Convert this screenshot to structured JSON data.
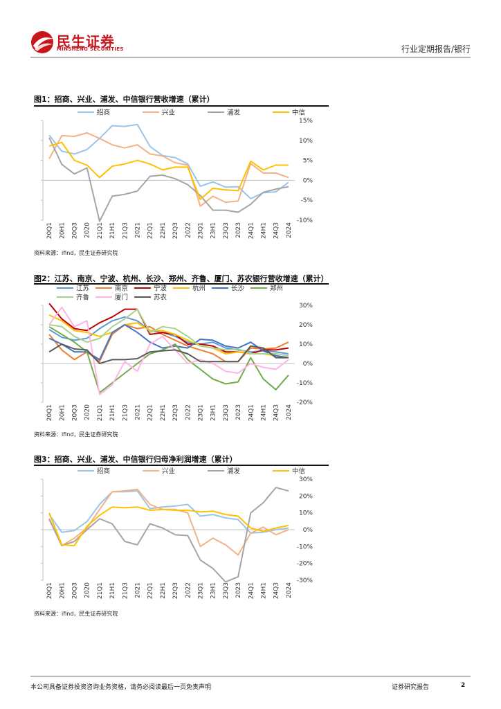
{
  "header": {
    "brand_cn": "民生证券",
    "brand_en": "MINSHENG SECURITIES",
    "report_type": "行业定期报告/银行"
  },
  "figures": [
    {
      "title": "图1：招商、兴业、浦发、中信银行营收增速（累计）",
      "source": "资料来源：ifind，民生证券研究院"
    },
    {
      "title": "图2：江苏、南京、宁波、杭州、长沙、郑州、齐鲁、厦门、苏农银行营收增速（累计）",
      "source": "资料来源：ifind，民生证券研究院"
    },
    {
      "title": "图3：招商、兴业、浦发、中信银行归母净利润增速（累计）",
      "source": "资料来源：ifind，民生证券研究院"
    }
  ],
  "footer": {
    "disclaimer": "本公司具备证券投资咨询业务资格，请务必阅读最后一页免责声明",
    "label": "证券研究报告",
    "page": "2"
  },
  "chart_data": [
    {
      "type": "line",
      "title": "图1：招商、兴业、浦发、中信银行营收增速（累计）",
      "categories": [
        "20Q1",
        "20H1",
        "20Q3",
        "2020",
        "21Q1",
        "21H1",
        "21Q3",
        "2021",
        "22Q1",
        "22H1",
        "22Q3",
        "2022",
        "23Q1",
        "23H1",
        "23Q3",
        "2023",
        "24Q1",
        "24H1",
        "24Q3",
        "2024"
      ],
      "ylim": [
        -10,
        15
      ],
      "yticks": [
        15,
        10,
        5,
        0,
        -5,
        -10
      ],
      "ytick_labels": [
        "15%",
        "10%",
        "5%",
        "0%",
        "-5%",
        "-10%"
      ],
      "legend": "top",
      "series": [
        {
          "name": "招商",
          "color": "#9dc3e6",
          "values": [
            11.3,
            7.3,
            6.6,
            7.7,
            10.5,
            13.7,
            13.5,
            14.0,
            8.5,
            6.2,
            5.7,
            4.1,
            -1.5,
            -0.4,
            -1.7,
            -1.6,
            -4.6,
            -3.1,
            -2.9,
            -0.5
          ]
        },
        {
          "name": "兴业",
          "color": "#f4b183",
          "values": [
            5.4,
            11.2,
            11.0,
            11.9,
            10.5,
            8.9,
            8.1,
            8.9,
            6.6,
            6.1,
            4.4,
            3.8,
            -6.5,
            -4.0,
            -5.5,
            -5.2,
            4.2,
            1.8,
            1.8,
            0.7
          ]
        },
        {
          "name": "浦发",
          "color": "#a5a5a5",
          "values": [
            10.7,
            4.0,
            1.6,
            3.1,
            -10.3,
            -4.0,
            -3.5,
            -2.7,
            1.0,
            1.3,
            0.4,
            -1.1,
            -3.8,
            -7.5,
            -7.5,
            -8.0,
            -6.0,
            -3.0,
            -2.2,
            -1.6
          ]
        },
        {
          "name": "中信",
          "color": "#ffc000",
          "values": [
            8.6,
            9.5,
            5.0,
            3.8,
            0.7,
            3.5,
            4.1,
            5.0,
            4.1,
            2.6,
            3.3,
            3.3,
            -4.8,
            -2.0,
            -2.4,
            -2.6,
            4.8,
            2.6,
            3.8,
            3.8
          ]
        }
      ]
    },
    {
      "type": "line",
      "title": "图2：江苏、南京、宁波、杭州、长沙、郑州、齐鲁、厦门、苏农银行营收增速（累计）",
      "categories": [
        "20Q1",
        "20H1",
        "20Q3",
        "2020",
        "21Q1",
        "21H1",
        "21Q3",
        "2021",
        "22Q1",
        "22H1",
        "22Q3",
        "2022",
        "23Q1",
        "23H1",
        "23Q3",
        "2023",
        "24Q1",
        "24H1",
        "24Q3",
        "2024"
      ],
      "ylim": [
        -20,
        30
      ],
      "yticks": [
        30,
        20,
        10,
        0,
        -10,
        -20
      ],
      "ytick_labels": [
        "30%",
        "20%",
        "10%",
        "0%",
        "-10%",
        "-20%"
      ],
      "legend": "top",
      "series": [
        {
          "name": "江苏",
          "color": "#5b9bd5",
          "values": [
            17.5,
            13.5,
            12.0,
            13.0,
            18.0,
            22.0,
            24.0,
            22.0,
            17.0,
            16.0,
            14.0,
            11.0,
            10.0,
            11.0,
            8.0,
            7.0,
            6.0,
            6.5,
            6.0,
            5.0
          ]
        },
        {
          "name": "南京",
          "color": "#ed7d31",
          "values": [
            15.0,
            7.0,
            2.0,
            6.0,
            1.0,
            15.0,
            20.0,
            18.0,
            19.0,
            15.0,
            12.0,
            9.0,
            7.0,
            5.0,
            1.0,
            1.0,
            8.0,
            7.5,
            8.0,
            11.0
          ]
        },
        {
          "name": "宁波",
          "color": "#c00000",
          "values": [
            31.0,
            23.0,
            18.0,
            17.0,
            21.0,
            24.0,
            28.0,
            28.0,
            15.0,
            16.0,
            15.0,
            10.0,
            10.0,
            9.0,
            6.0,
            6.0,
            5.0,
            7.0,
            7.0,
            8.0
          ]
        },
        {
          "name": "杭州",
          "color": "#ffc000",
          "values": [
            25.0,
            22.0,
            17.0,
            16.0,
            14.0,
            16.0,
            20.0,
            21.0,
            17.0,
            17.0,
            15.0,
            12.0,
            9.0,
            8.0,
            5.0,
            6.0,
            5.0,
            5.0,
            4.0,
            3.0
          ]
        },
        {
          "name": "长沙",
          "color": "#4472c4",
          "values": [
            13.0,
            10.0,
            6.0,
            6.0,
            2.0,
            16.0,
            20.0,
            16.0,
            11.0,
            8.0,
            9.0,
            8.0,
            12.5,
            12.0,
            9.0,
            8.0,
            11.0,
            6.5,
            4.0,
            3.0
          ]
        },
        {
          "name": "郑州",
          "color": "#70ad47",
          "values": [
            19.0,
            15.0,
            11.0,
            6.0,
            -15.0,
            -10.0,
            -5.0,
            0.0,
            5.0,
            7.0,
            10.0,
            2.0,
            -3.0,
            -8.0,
            -10.5,
            -9.5,
            3.0,
            -8.0,
            -13.5,
            -6.0
          ]
        },
        {
          "name": "齐鲁",
          "color": "#a9d18e",
          "values": [
            20.0,
            19.0,
            14.0,
            11.0,
            13.0,
            19.0,
            23.0,
            28.0,
            16.0,
            19.0,
            18.0,
            14.0,
            9.0,
            8.0,
            7.0,
            7.5,
            5.0,
            5.0,
            5.0,
            4.0
          ]
        },
        {
          "name": "厦门",
          "color": "#ffb3e6",
          "values": [
            20.0,
            29.0,
            19.0,
            22.0,
            -16.0,
            -11.0,
            1.0,
            -4.0,
            10.0,
            14.0,
            7.0,
            0.0,
            2.0,
            0.0,
            -4.0,
            -5.0,
            0.0,
            -2.0,
            -3.0,
            2.0
          ]
        },
        {
          "name": "苏农",
          "color": "#595959",
          "values": [
            6.0,
            10.0,
            7.5,
            7.0,
            0.0,
            2.0,
            2.0,
            2.5,
            6.0,
            6.5,
            7.0,
            5.0,
            1.0,
            1.0,
            1.0,
            1.0,
            9.0,
            8.0,
            3.0,
            3.0
          ]
        }
      ]
    },
    {
      "type": "line",
      "title": "图3：招商、兴业、浦发、中信银行归母净利润增速（累计）",
      "categories": [
        "20Q1",
        "20H1",
        "20Q3",
        "2020",
        "21Q1",
        "21H1",
        "21Q3",
        "2021",
        "22Q1",
        "22H1",
        "22Q3",
        "2022",
        "23Q1",
        "23H1",
        "23Q3",
        "2023",
        "24Q1",
        "24H1",
        "24Q3",
        "2024"
      ],
      "ylim": [
        -30,
        30
      ],
      "yticks": [
        30,
        20,
        10,
        0,
        -10,
        -20,
        -30
      ],
      "ytick_labels": [
        "30%",
        "20%",
        "10%",
        "0%",
        "-10%",
        "-20%",
        "-30%"
      ],
      "legend": "top",
      "series": [
        {
          "name": "招商",
          "color": "#9dc3e6",
          "values": [
            9.0,
            -1.5,
            -0.5,
            4.8,
            15.0,
            22.5,
            22.5,
            23.0,
            12.5,
            13.5,
            14.0,
            15.0,
            8.0,
            9.0,
            7.0,
            6.0,
            -2.0,
            -1.5,
            0.0,
            1.0
          ]
        },
        {
          "name": "兴业",
          "color": "#f4b183",
          "values": [
            6.0,
            -9.5,
            -5.0,
            1.0,
            12.0,
            22.5,
            23.0,
            24.0,
            15.0,
            12.0,
            12.0,
            10.0,
            -10.0,
            -5.0,
            -9.0,
            -15.0,
            -2.0,
            1.5,
            -3.0,
            0.0
          ]
        },
        {
          "name": "浦发",
          "color": "#a5a5a5",
          "values": [
            6.5,
            -9.5,
            -7.0,
            0.0,
            6.5,
            3.5,
            -7.0,
            -9.0,
            3.5,
            1.0,
            -3.0,
            -3.5,
            -18.0,
            -23.0,
            -31.0,
            -28.0,
            10.0,
            16.0,
            25.0,
            23.0
          ]
        },
        {
          "name": "中信",
          "color": "#ffc000",
          "values": [
            10.0,
            -9.0,
            -9.5,
            2.0,
            8.5,
            13.5,
            13.0,
            13.5,
            11.5,
            12.0,
            11.5,
            11.5,
            10.5,
            11.0,
            9.0,
            8.0,
            1.0,
            -1.0,
            1.0,
            2.5
          ]
        }
      ]
    }
  ]
}
